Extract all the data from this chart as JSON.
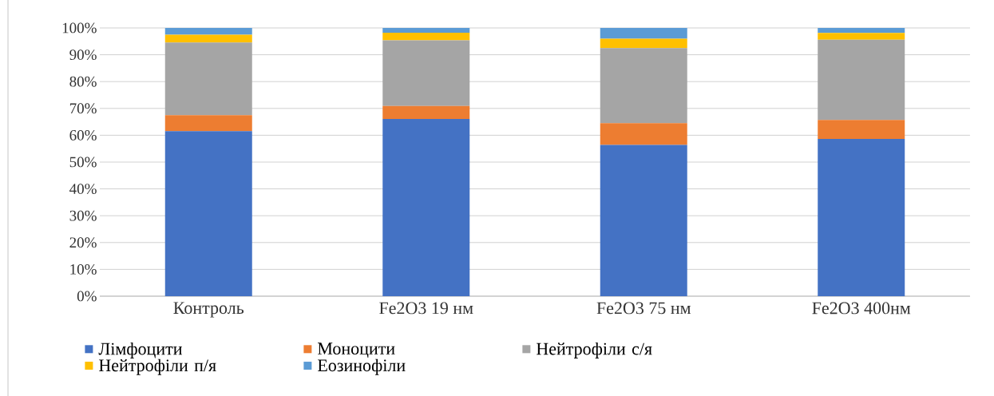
{
  "chart_data": {
    "type": "bar",
    "stacked": true,
    "categories": [
      "Контроль",
      "Fe2O3  19 нм",
      "Fe2O3  75 нм",
      "Fe2O3  400нм"
    ],
    "series": [
      {
        "name": "Лімфоцити",
        "color": "#4472c4",
        "values": [
          61.5,
          66.1,
          56.4,
          58.6
        ]
      },
      {
        "name": "Моноцити",
        "color": "#ed7d31",
        "values": [
          6.0,
          4.8,
          8.1,
          7.1
        ]
      },
      {
        "name": "Нейтрофіли с/я",
        "color": "#a5a5a5",
        "values": [
          27.1,
          24.5,
          28.0,
          29.9
        ]
      },
      {
        "name": "Нейтрофіли п/я",
        "color": "#ffc000",
        "values": [
          2.9,
          2.8,
          3.5,
          2.5
        ]
      },
      {
        "name": "Еозинофіли",
        "color": "#5b9bd5",
        "values": [
          2.5,
          1.8,
          4.0,
          1.9
        ]
      }
    ],
    "ylim": [
      0,
      100
    ],
    "yticks": [
      {
        "value": 0,
        "label": "0%"
      },
      {
        "value": 10,
        "label": "10%"
      },
      {
        "value": 20,
        "label": "20%"
      },
      {
        "value": 30,
        "label": "30%"
      },
      {
        "value": 40,
        "label": "40%"
      },
      {
        "value": 50,
        "label": "50%"
      },
      {
        "value": 60,
        "label": "60%"
      },
      {
        "value": 70,
        "label": "70%"
      },
      {
        "value": 80,
        "label": "80%"
      },
      {
        "value": 90,
        "label": "90%"
      },
      {
        "value": 100,
        "label": "100%"
      }
    ],
    "grid": "y",
    "legend": "bottom"
  }
}
